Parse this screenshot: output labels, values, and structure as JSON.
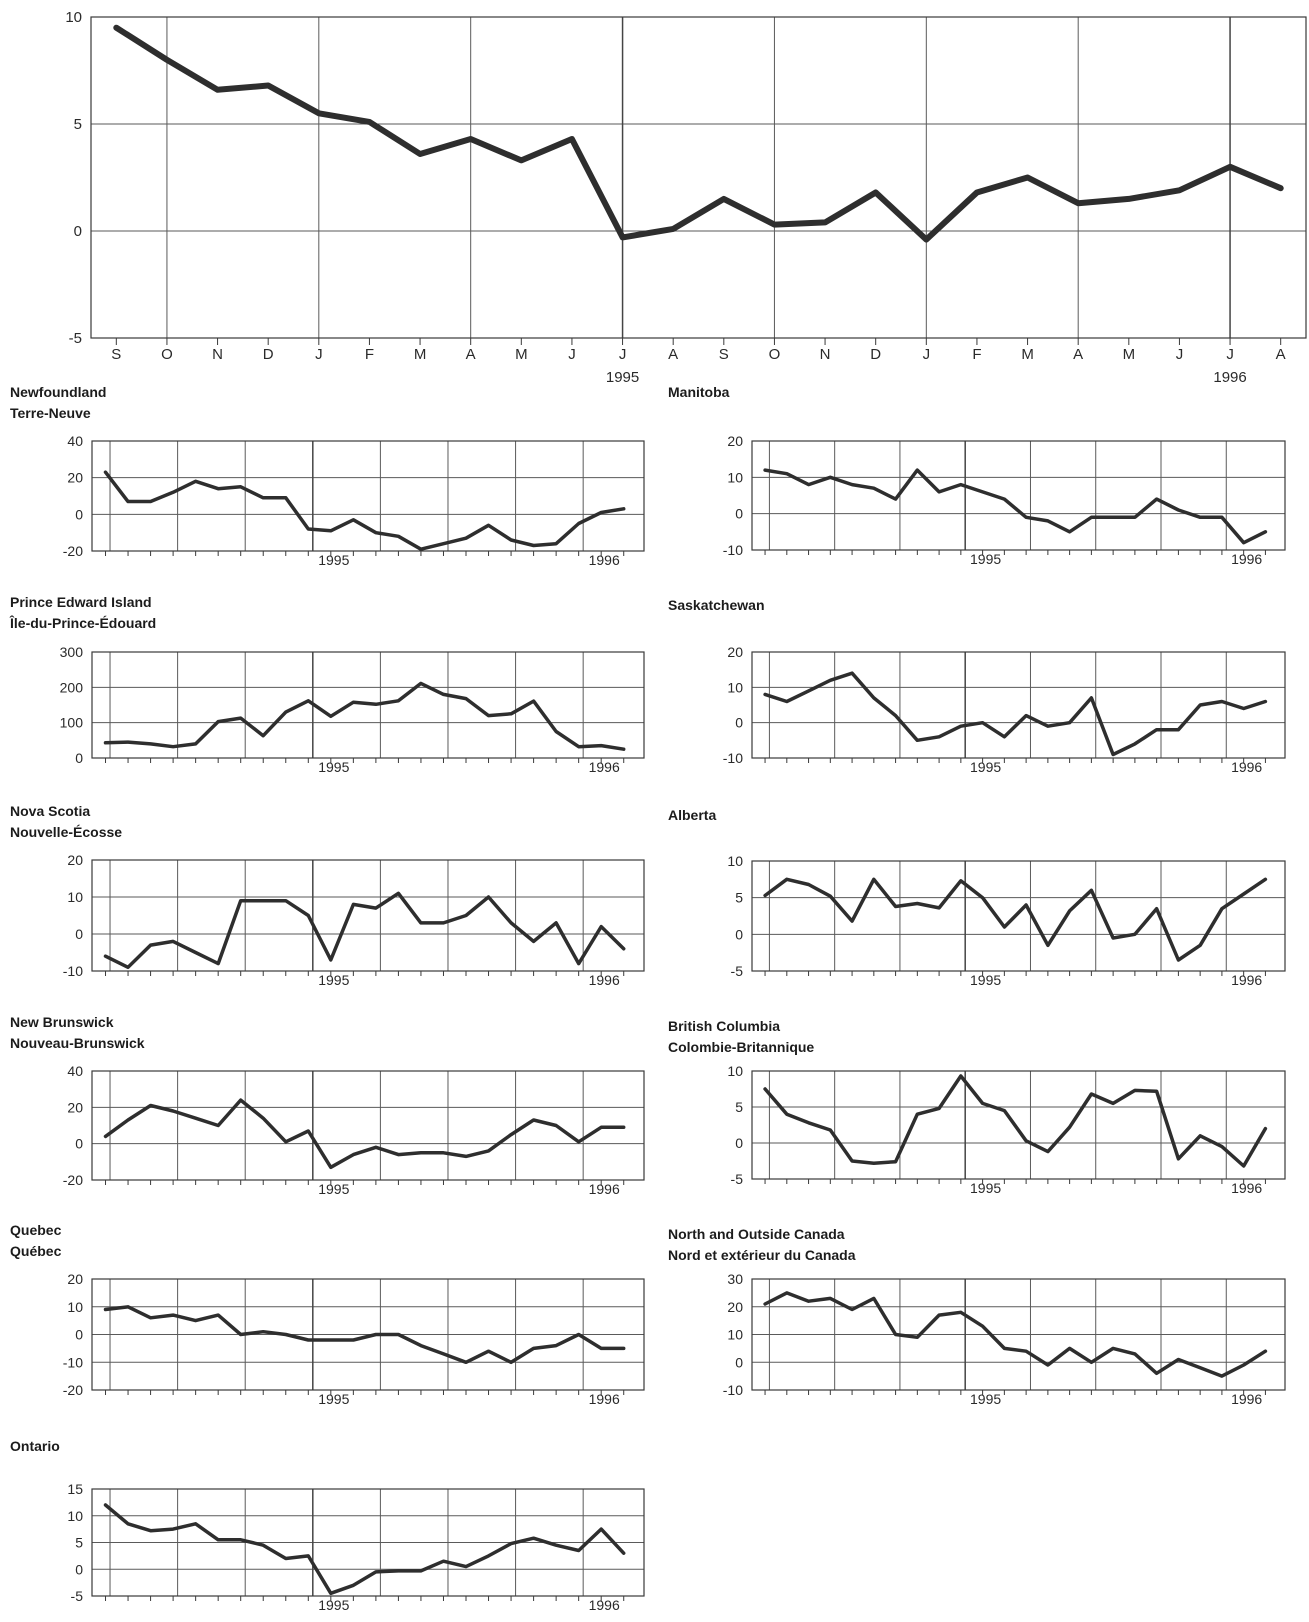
{
  "chart_data": [
    {
      "id": "main",
      "type": "line",
      "x": [
        "S",
        "O",
        "N",
        "D",
        "J",
        "F",
        "M",
        "A",
        "M",
        "J",
        "J",
        "A",
        "S",
        "O",
        "N",
        "D",
        "J",
        "F",
        "M",
        "A",
        "M",
        "J",
        "J",
        "A"
      ],
      "year_labels": [
        {
          "index": 10,
          "text": "1995"
        },
        {
          "index": 22,
          "text": "1996"
        }
      ],
      "values": [
        9.5,
        8.0,
        6.6,
        6.8,
        5.5,
        5.1,
        3.6,
        4.3,
        3.3,
        4.3,
        -0.3,
        0.1,
        1.5,
        0.3,
        0.4,
        1.8,
        -0.4,
        1.8,
        2.5,
        1.3,
        1.5,
        1.9,
        3.0,
        2.0
      ],
      "yticks": [
        "10",
        "5",
        "0",
        "-5"
      ],
      "ylim": [
        -5,
        10
      ]
    },
    {
      "id": "newfoundland",
      "type": "line",
      "title": [
        "Newfoundland",
        "Terre-Neuve"
      ],
      "year_labels": [
        {
          "index": 10,
          "text": "1995"
        },
        {
          "index": 22,
          "text": "1996"
        }
      ],
      "values": [
        23,
        7,
        7,
        12,
        18,
        14,
        15,
        9,
        9,
        -8,
        -9,
        -3,
        -10,
        -12,
        -19,
        -16,
        -13,
        -6,
        -14,
        -17,
        -16,
        -5,
        1,
        3
      ],
      "yticks": [
        "40",
        "20",
        "0",
        "-20"
      ],
      "ylim": [
        -20,
        40
      ]
    },
    {
      "id": "manitoba",
      "type": "line",
      "title": [
        "Manitoba"
      ],
      "year_labels": [
        {
          "index": 10,
          "text": "1995"
        },
        {
          "index": 22,
          "text": "1996"
        }
      ],
      "values": [
        12,
        11,
        8,
        10,
        8,
        7,
        4,
        12,
        6,
        8,
        6,
        4,
        -1,
        -2,
        -5,
        -1,
        -1,
        -1,
        4,
        1,
        -1,
        -1,
        -8,
        -5
      ],
      "yticks": [
        "20",
        "10",
        "0",
        "-10"
      ],
      "ylim": [
        -10,
        20
      ]
    },
    {
      "id": "pei",
      "type": "line",
      "title": [
        "Prince Edward Island",
        "Île-du-Prince-Édouard"
      ],
      "year_labels": [
        {
          "index": 10,
          "text": "1995"
        },
        {
          "index": 22,
          "text": "1996"
        }
      ],
      "values": [
        43,
        45,
        40,
        32,
        40,
        103,
        113,
        63,
        130,
        162,
        118,
        158,
        152,
        162,
        211,
        180,
        168,
        120,
        125,
        161,
        75,
        32,
        35,
        25
      ],
      "yticks": [
        "300",
        "200",
        "100",
        "0"
      ],
      "ylim": [
        0,
        300
      ]
    },
    {
      "id": "saskatchewan",
      "type": "line",
      "title": [
        "Saskatchewan"
      ],
      "year_labels": [
        {
          "index": 10,
          "text": "1995"
        },
        {
          "index": 22,
          "text": "1996"
        }
      ],
      "values": [
        8,
        6,
        9,
        12,
        14,
        7,
        2,
        -5,
        -4,
        -1,
        0,
        -4,
        2,
        -1,
        0,
        7,
        -9,
        -6,
        -2,
        -2,
        5,
        6,
        4,
        6
      ],
      "yticks": [
        "20",
        "10",
        "0",
        "-10"
      ],
      "ylim": [
        -10,
        20
      ]
    },
    {
      "id": "nova-scotia",
      "type": "line",
      "title": [
        "Nova Scotia",
        "Nouvelle-Écosse"
      ],
      "year_labels": [
        {
          "index": 10,
          "text": "1995"
        },
        {
          "index": 22,
          "text": "1996"
        }
      ],
      "values": [
        -6,
        -9,
        -3,
        -2,
        -5,
        -8,
        9,
        9,
        9,
        5,
        -7,
        8,
        7,
        11,
        3,
        3,
        5,
        10,
        3,
        -2,
        3,
        -8,
        2,
        -4
      ],
      "yticks": [
        "20",
        "10",
        "0",
        "-10"
      ],
      "ylim": [
        -10,
        20
      ]
    },
    {
      "id": "alberta",
      "type": "line",
      "title": [
        "Alberta"
      ],
      "year_labels": [
        {
          "index": 10,
          "text": "1995"
        },
        {
          "index": 22,
          "text": "1996"
        }
      ],
      "values": [
        5.3,
        7.5,
        6.8,
        5.2,
        1.8,
        7.5,
        3.8,
        4.2,
        3.6,
        7.3,
        5.0,
        1.0,
        4.0,
        -1.5,
        3.2,
        6.0,
        -0.5,
        0.0,
        3.5,
        -3.5,
        -1.5,
        3.5,
        5.5,
        7.5
      ],
      "yticks": [
        "10",
        "5",
        "0",
        "-5"
      ],
      "ylim": [
        -5,
        10
      ]
    },
    {
      "id": "new-brunswick",
      "type": "line",
      "title": [
        "New Brunswick",
        "Nouveau-Brunswick"
      ],
      "year_labels": [
        {
          "index": 10,
          "text": "1995"
        },
        {
          "index": 22,
          "text": "1996"
        }
      ],
      "values": [
        4,
        13,
        21,
        18,
        14,
        10,
        24,
        14,
        1,
        7,
        -13,
        -6,
        -2,
        -6,
        -5,
        -5,
        -7,
        -4,
        5,
        13,
        10,
        1,
        9,
        9
      ],
      "yticks": [
        "40",
        "20",
        "0",
        "-20"
      ],
      "ylim": [
        -20,
        40
      ]
    },
    {
      "id": "british-columbia",
      "type": "line",
      "title": [
        "British Columbia",
        "Colombie-Britannique"
      ],
      "year_labels": [
        {
          "index": 10,
          "text": "1995"
        },
        {
          "index": 22,
          "text": "1996"
        }
      ],
      "values": [
        7.5,
        4.0,
        2.8,
        1.8,
        -2.5,
        -2.8,
        -2.6,
        4.0,
        4.8,
        9.3,
        5.5,
        4.5,
        0.3,
        -1.2,
        2.2,
        6.8,
        5.5,
        7.3,
        7.2,
        -2.2,
        1.0,
        -0.5,
        -3.2,
        2.0
      ],
      "yticks": [
        "10",
        "5",
        "0",
        "-5"
      ],
      "ylim": [
        -5,
        10
      ]
    },
    {
      "id": "quebec",
      "type": "line",
      "title": [
        "Quebec",
        "Québec"
      ],
      "year_labels": [
        {
          "index": 10,
          "text": "1995"
        },
        {
          "index": 22,
          "text": "1996"
        }
      ],
      "values": [
        9,
        10,
        6,
        7,
        5,
        7,
        0,
        1,
        0,
        -2,
        -2,
        -2,
        0,
        0,
        -4,
        -7,
        -10,
        -6,
        -10,
        -5,
        -4,
        0,
        -5,
        -5
      ],
      "yticks": [
        "20",
        "10",
        "0",
        "-10",
        "-20"
      ],
      "ylim": [
        -20,
        20
      ]
    },
    {
      "id": "north",
      "type": "line",
      "title": [
        "North and Outside Canada",
        "Nord et extérieur du Canada"
      ],
      "year_labels": [
        {
          "index": 10,
          "text": "1995"
        },
        {
          "index": 22,
          "text": "1996"
        }
      ],
      "values": [
        21,
        25,
        22,
        23,
        19,
        23,
        10,
        9,
        17,
        18,
        13,
        5,
        4,
        -1,
        5,
        0,
        5,
        3,
        -4,
        1,
        -2,
        -5,
        -1,
        4
      ],
      "yticks": [
        "30",
        "20",
        "10",
        "0",
        "-10"
      ],
      "ylim": [
        -10,
        30
      ]
    },
    {
      "id": "ontario",
      "type": "line",
      "title": [
        "Ontario"
      ],
      "year_labels": [
        {
          "index": 10,
          "text": "1995"
        },
        {
          "index": 22,
          "text": "1996"
        }
      ],
      "values": [
        12,
        8.5,
        7.2,
        7.5,
        8.5,
        5.5,
        5.5,
        4.5,
        2,
        2.5,
        -4.5,
        -3,
        -0.5,
        -0.3,
        -0.3,
        1.5,
        0.5,
        2.5,
        4.8,
        5.8,
        4.5,
        3.5,
        7.5,
        3
      ],
      "yticks": [
        "15",
        "10",
        "5",
        "0",
        "-5"
      ],
      "ylim": [
        -5,
        15
      ]
    }
  ]
}
